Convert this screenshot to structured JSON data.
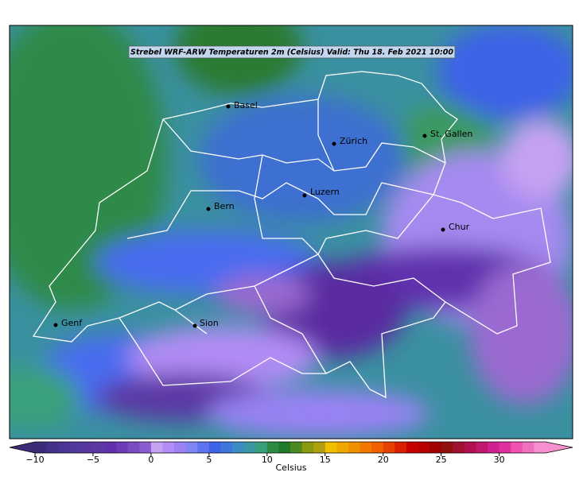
{
  "title": "Strebel WRF-ARW Temperaturen 2m (Celsius)   Valid: Thu 18. Feb 2021 10:00",
  "cities": [
    "Basel",
    "Zürich",
    "St. Gallen",
    "Luzern",
    "Bern",
    "Chur",
    "Genf",
    "Sion"
  ],
  "colorbar": {
    "label": "Celsius",
    "clim": [
      -10,
      34
    ],
    "ticks": [
      {
        "value": -10,
        "label": "−10"
      },
      {
        "value": -5,
        "label": "−5"
      },
      0,
      5,
      10,
      15,
      20,
      25,
      30
    ],
    "colors": [
      "#3c2c78",
      "#44308a",
      "#4a3496",
      "#50389c",
      "#56389f",
      "#5c38a4",
      "#6230ae",
      "#6c3cb8",
      "#7a4cc4",
      "#8a5cd0",
      "#c6a2f2",
      "#b08cf4",
      "#9a82f4",
      "#7f86f4",
      "#5f74f0",
      "#3e62e8",
      "#3f76dc",
      "#3d8cc4",
      "#3a98a4",
      "#3aa07c",
      "#2e8a42",
      "#1f7a2a",
      "#4a8a20",
      "#8a9a10",
      "#b0a010",
      "#f0c000",
      "#f0a800",
      "#f09000",
      "#f07800",
      "#f06000",
      "#e84000",
      "#d82000",
      "#c80000",
      "#b80000",
      "#a00000",
      "#901010",
      "#a01030",
      "#b01050",
      "#c01870",
      "#d02090",
      "#e030a0",
      "#f050b0",
      "#f070c0",
      "#f890d0"
    ]
  }
}
